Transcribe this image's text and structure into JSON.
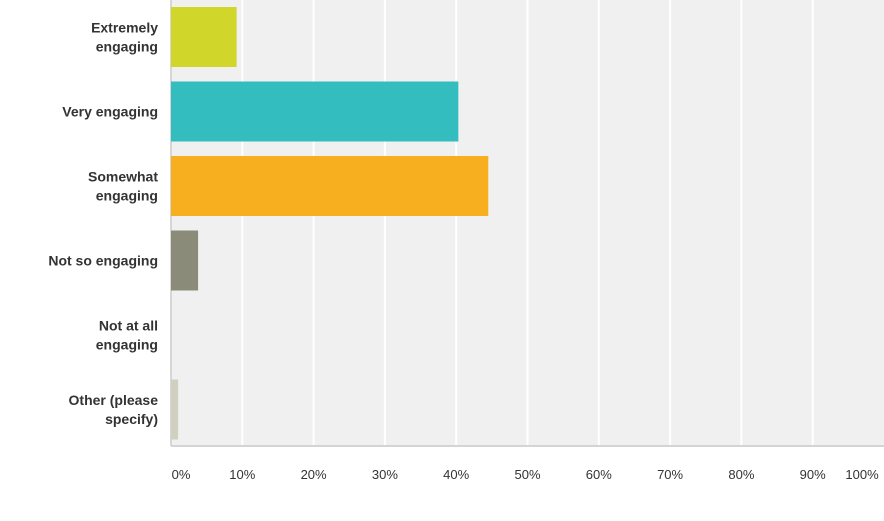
{
  "chart_data": {
    "type": "bar",
    "orientation": "horizontal",
    "categories": [
      [
        "Extremely",
        "engaging"
      ],
      [
        "Very engaging"
      ],
      [
        "Somewhat",
        "engaging"
      ],
      [
        "Not so engaging"
      ],
      [
        "Not at all",
        "engaging"
      ],
      [
        "Other (please",
        "specify)"
      ]
    ],
    "values": [
      9.2,
      40.3,
      44.5,
      3.8,
      0,
      1.0
    ],
    "colors": [
      "#d0d62a",
      "#33bdbf",
      "#f7af1f",
      "#8b8b7a",
      "#cccccc",
      "#d0cfc0"
    ],
    "xlim": [
      0,
      100
    ],
    "x_ticks": [
      "0%",
      "10%",
      "20%",
      "30%",
      "40%",
      "50%",
      "60%",
      "70%",
      "80%",
      "90%",
      "100%"
    ],
    "grid": true,
    "title": "",
    "xlabel": "",
    "ylabel": ""
  }
}
